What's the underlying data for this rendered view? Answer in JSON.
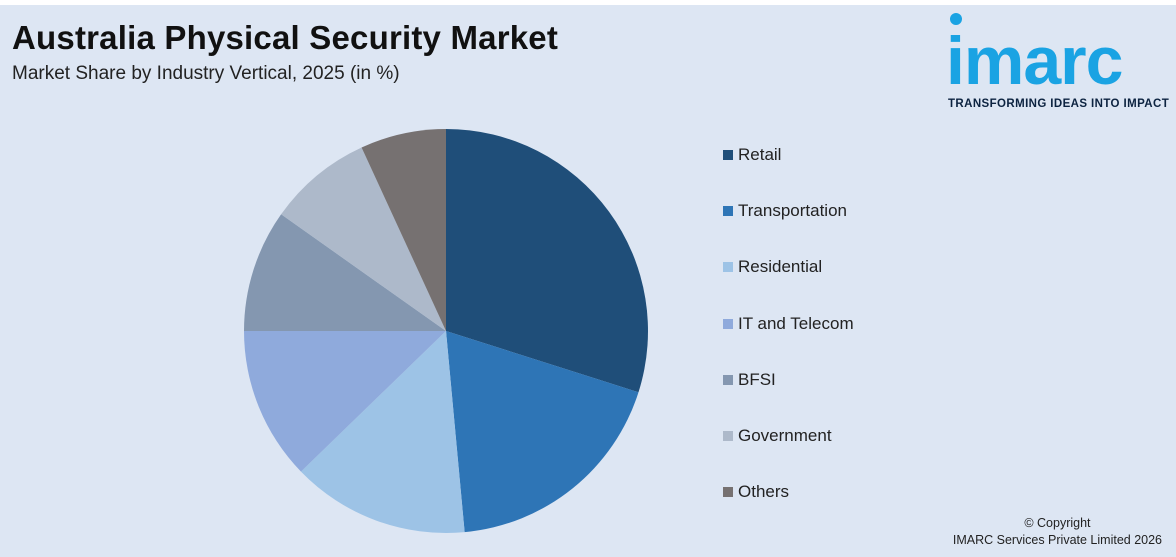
{
  "header": {
    "title": "Australia Physical Security Market",
    "subtitle": "Market Share by Industry Vertical, 2025 (in %)"
  },
  "logo": {
    "wordmark": "imarc",
    "tagline": "TRANSFORMING IDEAS INTO IMPACT",
    "color": "#1aa3e3"
  },
  "chart_data": {
    "type": "pie",
    "title": "Australia Physical Security Market",
    "subtitle": "Market Share by Industry Vertical, 2025 (in %)",
    "legend_position": "right",
    "slices": [
      {
        "name": "Retail",
        "value": 30.5,
        "color": "#1f4e79"
      },
      {
        "name": "Transportation",
        "value": 19.0,
        "color": "#2e75b6"
      },
      {
        "name": "Residential",
        "value": 14.5,
        "color": "#9dc3e6"
      },
      {
        "name": "IT and Telecom",
        "value": 12.5,
        "color": "#8faadc"
      },
      {
        "name": "BFSI",
        "value": 10.0,
        "color": "#8497b0"
      },
      {
        "name": "Government",
        "value": 8.5,
        "color": "#adb9ca"
      },
      {
        "name": "Others",
        "value": 7.0,
        "color": "#767171"
      }
    ]
  },
  "footer": {
    "copyright_line1": "© Copyright",
    "copyright_line2": "IMARC Services Private Limited 2026"
  }
}
